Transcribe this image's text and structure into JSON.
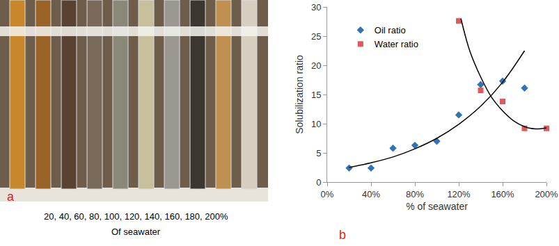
{
  "panel_a": {
    "label": "a",
    "caption": "20, 40, 60, 80, 100, 120, 140, 160, 180, 200%",
    "caption_line2": "Of seawater"
  },
  "chart_data": {
    "type": "scatter",
    "panel_label": "b",
    "x_label": "% of seawater",
    "y_label": "Solubilization ratio",
    "xlim": [
      0,
      200
    ],
    "xticks": [
      {
        "value": 0,
        "label": "0%"
      },
      {
        "value": 40,
        "label": "40%"
      },
      {
        "value": 80,
        "label": "80%"
      },
      {
        "value": 120,
        "label": "120%"
      },
      {
        "value": 160,
        "label": "160%"
      },
      {
        "value": 200,
        "label": "200%"
      }
    ],
    "ylim": [
      0,
      30
    ],
    "yticks": [
      0,
      5,
      10,
      15,
      20,
      25,
      30
    ],
    "grid": false,
    "legend": "upper left",
    "series": [
      {
        "name": "Oil ratio",
        "type": "scatter",
        "marker": "diamond",
        "color": "#2e75b6",
        "x": [
          20,
          40,
          60,
          80,
          100,
          120,
          140,
          160,
          180
        ],
        "values": [
          2.4,
          2.4,
          5.8,
          6.3,
          7.0,
          11.5,
          16.7,
          17.3,
          16.1
        ]
      },
      {
        "name": "Water ratio",
        "type": "scatter",
        "marker": "square",
        "color": "#e05a5a",
        "x": [
          120,
          140,
          160,
          180,
          200
        ],
        "values": [
          27.6,
          15.7,
          13.8,
          9.2,
          9.2
        ]
      },
      {
        "type": "line",
        "line_style": "solid",
        "color": "#000000",
        "x": [
          20,
          40,
          60,
          80,
          100,
          120,
          140,
          160,
          180
        ],
        "values": [
          2.5,
          3.3,
          4.3,
          5.7,
          7.5,
          9.9,
          13.0,
          17.1,
          22.5
        ]
      },
      {
        "type": "line",
        "line_style": "solid",
        "color": "#000000",
        "x": [
          122,
          130,
          140,
          150,
          160,
          170,
          180,
          190,
          200
        ],
        "values": [
          28.0,
          22.5,
          18.0,
          14.5,
          12.2,
          10.5,
          9.5,
          9.1,
          9.3
        ]
      }
    ]
  }
}
